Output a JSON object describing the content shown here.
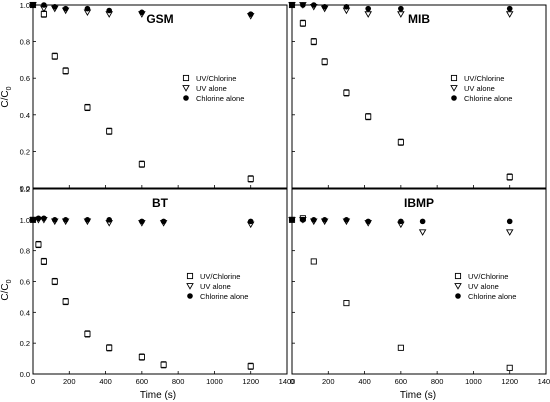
{
  "figure": {
    "ylabel": "C/C",
    "ylabel_subscript": "0",
    "xlabel": "Time (s)"
  },
  "chart_data": [
    {
      "type": "scatter",
      "title": "GSM",
      "xlim": [
        0,
        1400
      ],
      "ylim": [
        0,
        1.0
      ],
      "xticks": [],
      "yticks": [
        "0.0",
        "0.2",
        "0.4",
        "0.6",
        "0.8",
        "1.0"
      ],
      "legend_position": "right",
      "series": [
        {
          "name": "UV/Chlorine",
          "marker": "square-open",
          "x": [
            0,
            60,
            120,
            180,
            300,
            420,
            600,
            1200
          ],
          "y": [
            1.0,
            0.95,
            0.72,
            0.64,
            0.44,
            0.31,
            0.13,
            0.05
          ],
          "errorbars": true
        },
        {
          "name": "UV alone",
          "marker": "triangle-open",
          "x": [
            0,
            60,
            120,
            180,
            300,
            420,
            600,
            1200
          ],
          "y": [
            1.0,
            0.98,
            0.98,
            0.97,
            0.96,
            0.95,
            0.95,
            0.94
          ]
        },
        {
          "name": "Chlorine alone",
          "marker": "circle-filled",
          "x": [
            0,
            60,
            120,
            180,
            300,
            420,
            600,
            1200
          ],
          "y": [
            1.0,
            1.0,
            0.99,
            0.98,
            0.98,
            0.97,
            0.96,
            0.95
          ]
        }
      ]
    },
    {
      "type": "scatter",
      "title": "MIB",
      "xlim": [
        0,
        1400
      ],
      "ylim": [
        0,
        1.0
      ],
      "xticks": [],
      "yticks": [],
      "legend_position": "right",
      "series": [
        {
          "name": "UV/Chlorine",
          "marker": "square-open",
          "x": [
            0,
            60,
            120,
            180,
            300,
            420,
            600,
            1200
          ],
          "y": [
            1.0,
            0.9,
            0.8,
            0.69,
            0.52,
            0.39,
            0.25,
            0.06
          ],
          "errorbars": true
        },
        {
          "name": "UV alone",
          "marker": "triangle-open",
          "x": [
            0,
            60,
            120,
            180,
            300,
            420,
            600,
            1200
          ],
          "y": [
            1.0,
            1.0,
            0.99,
            0.98,
            0.97,
            0.95,
            0.95,
            0.95
          ]
        },
        {
          "name": "Chlorine alone",
          "marker": "circle-filled",
          "x": [
            0,
            60,
            120,
            180,
            300,
            420,
            600,
            1200
          ],
          "y": [
            1.0,
            1.0,
            1.0,
            0.99,
            0.99,
            0.98,
            0.98,
            0.98
          ]
        }
      ]
    },
    {
      "type": "scatter",
      "title": "BT",
      "xlim": [
        0,
        1400
      ],
      "ylim": [
        0,
        1.2
      ],
      "xticks": [
        "0",
        "200",
        "400",
        "600",
        "800",
        "1000",
        "1200",
        "1400"
      ],
      "yticks": [
        "0.0",
        "0.2",
        "0.4",
        "0.6",
        "0.8",
        "1.0",
        "1.2"
      ],
      "legend_position": "bottom-right",
      "series": [
        {
          "name": "UV/Chlorine",
          "marker": "square-open",
          "x": [
            0,
            30,
            60,
            120,
            180,
            300,
            420,
            600,
            720,
            1200
          ],
          "y": [
            1.0,
            0.84,
            0.73,
            0.6,
            0.47,
            0.26,
            0.17,
            0.11,
            0.06,
            0.05
          ],
          "errorbars": true
        },
        {
          "name": "UV alone",
          "marker": "triangle-open",
          "x": [
            0,
            30,
            60,
            120,
            180,
            300,
            420,
            600,
            720,
            1200
          ],
          "y": [
            1.0,
            1.0,
            1.0,
            0.99,
            0.99,
            0.99,
            0.98,
            0.98,
            0.98,
            0.97
          ]
        },
        {
          "name": "Chlorine alone",
          "marker": "circle-filled",
          "x": [
            0,
            30,
            60,
            120,
            180,
            300,
            420,
            600,
            720,
            1200
          ],
          "y": [
            1.0,
            1.01,
            1.01,
            1.0,
            1.0,
            1.0,
            1.0,
            0.99,
            0.99,
            0.99
          ]
        }
      ]
    },
    {
      "type": "scatter",
      "title": "IBMP",
      "xlim": [
        0,
        1400
      ],
      "ylim": [
        0,
        1.2
      ],
      "xticks": [
        "0",
        "200",
        "400",
        "600",
        "800",
        "1000",
        "1200",
        "1400"
      ],
      "yticks": [],
      "legend_position": "bottom-right",
      "series": [
        {
          "name": "UV/Chlorine",
          "marker": "square-open",
          "x": [
            0,
            60,
            120,
            300,
            600,
            1200
          ],
          "y": [
            1.0,
            1.01,
            0.73,
            0.46,
            0.17,
            0.04
          ]
        },
        {
          "name": "UV alone",
          "marker": "triangle-open",
          "x": [
            0,
            60,
            120,
            180,
            300,
            420,
            600,
            720,
            1200
          ],
          "y": [
            1.0,
            1.0,
            0.99,
            0.99,
            0.99,
            0.98,
            0.97,
            0.92,
            0.92
          ]
        },
        {
          "name": "Chlorine alone",
          "marker": "circle-filled",
          "x": [
            0,
            60,
            120,
            180,
            300,
            420,
            600,
            720,
            1200
          ],
          "y": [
            1.0,
            1.0,
            1.0,
            1.0,
            1.0,
            0.99,
            0.99,
            0.99,
            0.99
          ]
        }
      ]
    }
  ]
}
